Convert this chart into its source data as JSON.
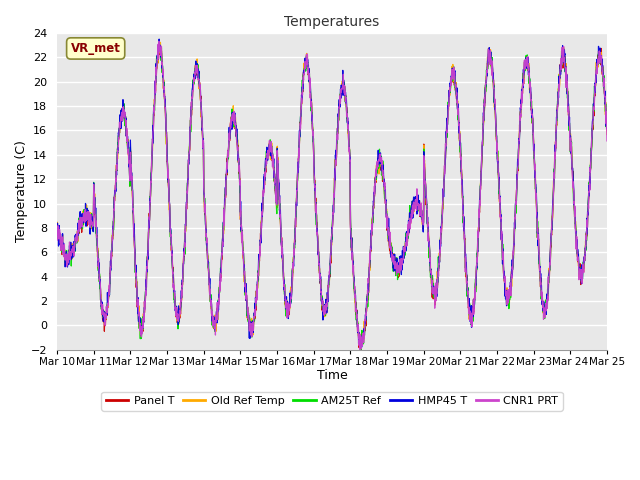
{
  "title": "Temperatures",
  "xlabel": "Time",
  "ylabel": "Temperature (C)",
  "ylim": [
    -2,
    24
  ],
  "yticks": [
    -2,
    0,
    2,
    4,
    6,
    8,
    10,
    12,
    14,
    16,
    18,
    20,
    22,
    24
  ],
  "x_labels": [
    "Mar 10",
    "Mar 11",
    "Mar 12",
    "Mar 13",
    "Mar 14",
    "Mar 15",
    "Mar 16",
    "Mar 17",
    "Mar 18",
    "Mar 19",
    "Mar 20",
    "Mar 21",
    "Mar 22",
    "Mar 23",
    "Mar 24",
    "Mar 25"
  ],
  "series_names": [
    "Panel T",
    "Old Ref Temp",
    "AM25T Ref",
    "HMP45 T",
    "CNR1 PRT"
  ],
  "series_colors": [
    "#cc0000",
    "#ffaa00",
    "#00dd00",
    "#0000dd",
    "#cc44cc"
  ],
  "annotation": "VR_met",
  "fig_bg": "#ffffff",
  "plot_bg": "#e8e8e8",
  "grid_color": "#ffffff",
  "n_days": 15,
  "pts_per_day": 144,
  "day_peaks": [
    9.0,
    17.5,
    22.5,
    21.0,
    17.0,
    14.5,
    21.5,
    19.5,
    13.5,
    10.0,
    20.5,
    22.0,
    21.5,
    22.0,
    22.0
  ],
  "day_mins": [
    5.5,
    0.5,
    -0.5,
    0.5,
    0.0,
    -0.5,
    1.0,
    1.0,
    -1.5,
    4.5,
    2.5,
    0.5,
    2.0,
    1.0,
    4.0
  ]
}
